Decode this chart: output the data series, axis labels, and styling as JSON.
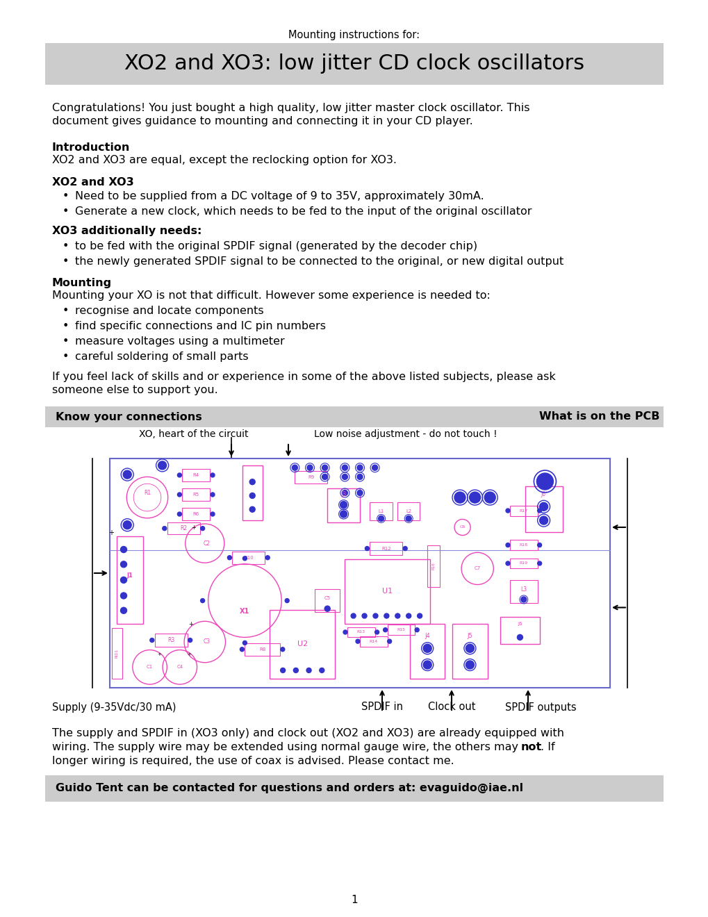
{
  "bg_color": "#ffffff",
  "title_super": "Mounting instructions for:",
  "title_main": "XO2 and XO3: low jitter CD clock oscillators",
  "title_bg": "#cccccc",
  "intro_line1": "Congratulations! You just bought a high quality, low jitter master clock oscillator. This",
  "intro_line2": "document gives guidance to mounting and connecting it in your CD player.",
  "section1_title": "Introduction",
  "section1_body": "XO2 and XO3 are equal, except the reclocking option for XO3.",
  "section2_title": "XO2 and XO3",
  "section2_bullets": [
    "Need to be supplied from a DC voltage of 9 to 35V, approximately 30mA.",
    "Generate a new clock, which needs to be fed to the input of the original oscillator"
  ],
  "section3_title": "XO3 additionally needs:",
  "section3_bullets": [
    "to be fed with the original SPDIF signal (generated by the decoder chip)",
    "the newly generated SPDIF signal to be connected to the original, or new digital output"
  ],
  "section4_title": "Mounting",
  "section4_intro": "Mounting your XO is not that difficult. However some experience is needed to:",
  "section4_bullets": [
    "recognise and locate components",
    "find specific connections and IC pin numbers",
    "measure voltages using a multimeter",
    "careful soldering of small parts"
  ],
  "section4_outro1": "If you feel lack of skills and or experience in some of the above listed subjects, please ask",
  "section4_outro2": "someone else to support you.",
  "pcb_header_left": "Know your connections",
  "pcb_header_right": "What is on the PCB",
  "pcb_header_bg": "#cccccc",
  "label_xo": "XO, heart of the circuit",
  "label_noise": "Low noise adjustment - do not touch !",
  "label_supply": "Supply (9-35Vdc/30 mA)",
  "label_spdif_in": "SPDIF in",
  "label_clock_out": "Clock out",
  "label_spdif_out": "SPDIF outputs",
  "footer1": "The supply and SPDIF in (XO3 only) and clock out (XO2 and XO3) are already equipped with",
  "footer2a": "wiring. The supply wire may be extended using normal gauge wire, the others may ",
  "footer2b": "not",
  "footer2c": ". If",
  "footer3": "longer wiring is required, the use of coax is advised. Please contact me.",
  "contact_box": "Guido Tent can be contacted for questions and orders at: evaguido@iae.nl",
  "contact_bg": "#cccccc",
  "page_num": "1",
  "mg": "#ee44bb",
  "bl": "#3333cc"
}
